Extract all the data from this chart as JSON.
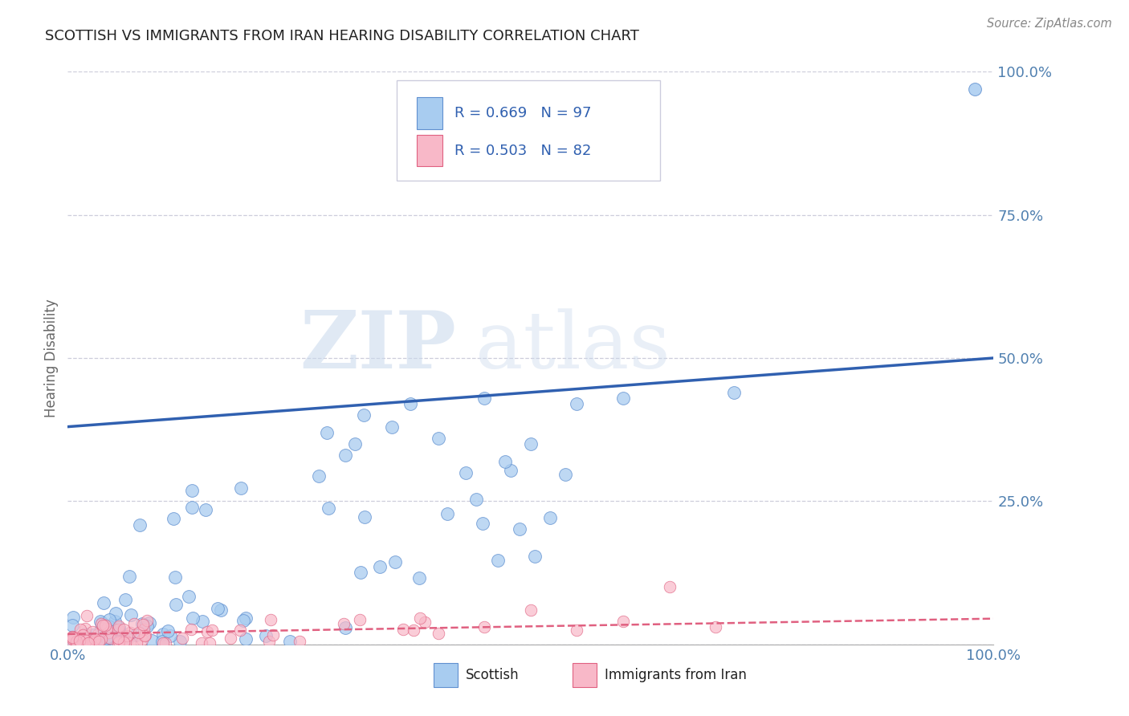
{
  "title": "SCOTTISH VS IMMIGRANTS FROM IRAN HEARING DISABILITY CORRELATION CHART",
  "source": "Source: ZipAtlas.com",
  "ylabel": "Hearing Disability",
  "xlim": [
    0,
    1.0
  ],
  "ylim": [
    0,
    1.0
  ],
  "ytick_values": [
    0.0,
    0.25,
    0.5,
    0.75,
    1.0
  ],
  "ytick_labels": [
    "",
    "25.0%",
    "50.0%",
    "75.0%",
    "100.0%"
  ],
  "xtick_values": [
    0.0,
    1.0
  ],
  "xtick_labels": [
    "0.0%",
    "100.0%"
  ],
  "legend_r1": "R = 0.669",
  "legend_n1": "N = 97",
  "legend_r2": "R = 0.503",
  "legend_n2": "N = 82",
  "color_scottish_fill": "#A8CCF0",
  "color_scottish_edge": "#6090D0",
  "color_iran_fill": "#F8B8C8",
  "color_iran_edge": "#E06080",
  "color_line_scottish": "#3060B0",
  "color_line_iran": "#E06080",
  "watermark_zip": "ZIP",
  "watermark_atlas": "atlas",
  "background_color": "#FFFFFF",
  "grid_color": "#C8C8D8",
  "title_color": "#222222",
  "axis_label_color": "#5080B0",
  "legend_text_color": "#3060B0",
  "source_color": "#888888",
  "scottish_line_x0": 0.0,
  "scottish_line_y0": 0.38,
  "scottish_line_x1": 1.0,
  "scottish_line_y1": 0.5,
  "iran_line_x0": 0.0,
  "iran_line_y0": 0.018,
  "iran_line_x1": 1.0,
  "iran_line_y1": 0.045
}
